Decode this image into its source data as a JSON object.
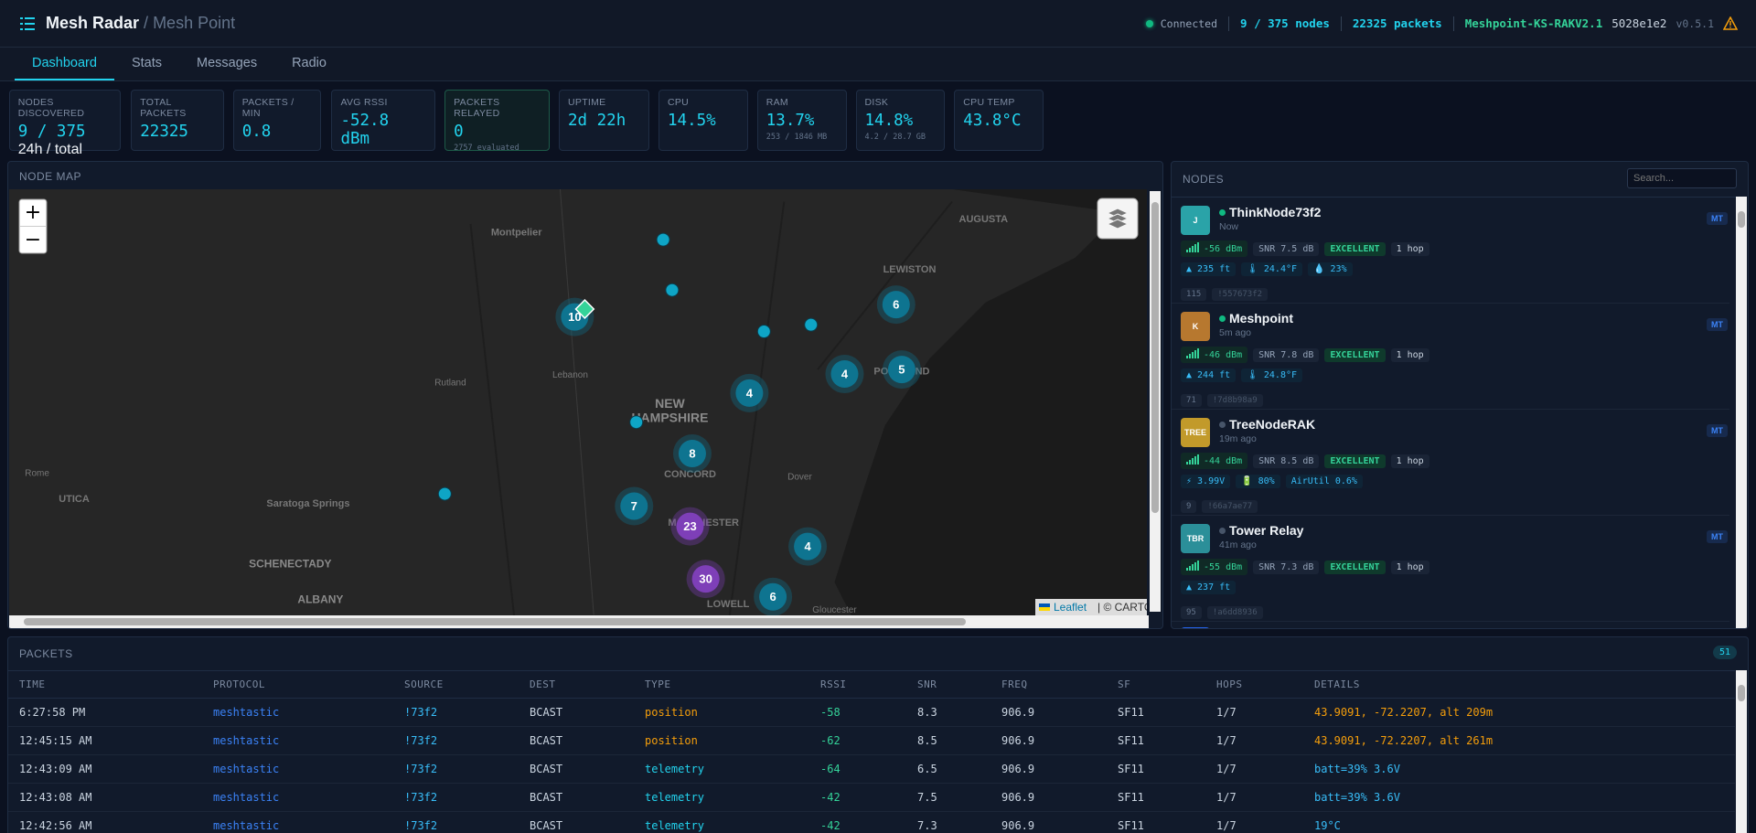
{
  "header": {
    "brand": "Mesh Radar",
    "separator": "/",
    "subtitle": "Mesh Point",
    "status": "Connected",
    "nodes": "9 / 375 nodes",
    "packets": "22325 packets",
    "device": "Meshpoint-KS-RAKV2.1",
    "hash": "5028e1e2",
    "version": "v0.5.1"
  },
  "tabs": [
    "Dashboard",
    "Stats",
    "Messages",
    "Radio"
  ],
  "stats": [
    {
      "label": "NODES DISCOVERED",
      "value": "9 / 375",
      "sub": "24h / total"
    },
    {
      "label": "TOTAL PACKETS",
      "value": "22325"
    },
    {
      "label": "PACKETS / MIN",
      "value": "0.8"
    },
    {
      "label": "AVG RSSI",
      "value": "-52.8 dBm"
    },
    {
      "label": "PACKETS RELAYED",
      "value": "0",
      "sub": "2757 evaluated"
    },
    {
      "label": "UPTIME",
      "value": "2d 22h"
    },
    {
      "label": "CPU",
      "value": "14.5%"
    },
    {
      "label": "RAM",
      "value": "13.7%",
      "sub": "253 / 1846 MB"
    },
    {
      "label": "DISK",
      "value": "14.8%",
      "sub": "4.2 / 28.7 GB"
    },
    {
      "label": "CPU TEMP",
      "value": "43.8°C"
    }
  ],
  "map": {
    "title": "NODE MAP",
    "zoom_in": "+",
    "zoom_out": "−",
    "places": [
      "Montpelier",
      "AUGUSTA",
      "LEWISTON",
      "Rutland",
      "Lebanon",
      "NEW",
      "HAMPSHIRE",
      "PORTLAND",
      "Rome",
      "UTICA",
      "Saratoga Springs",
      "CONCORD",
      "Dover",
      "MANCHESTER",
      "SCHENECTADY",
      "ALBANY",
      "LOWELL",
      "Gloucester"
    ],
    "clusters": [
      "10",
      "6",
      "4",
      "5",
      "4",
      "8",
      "7",
      "23",
      "4",
      "30",
      "6"
    ],
    "attribution": [
      "Leaflet",
      "| © CARTO"
    ]
  },
  "nodes_panel": {
    "title": "NODES",
    "search_placeholder": "Search...",
    "nodes": [
      {
        "avatar": "J",
        "name": "ThinkNode73f2",
        "seen": "Now",
        "rssi": "-56 dBm",
        "snr": "SNR 7.5 dB",
        "quality": "EXCELLENT",
        "hops": "1 hop",
        "extras": [
          "▲ 235 ft",
          "🌡 24.4°F",
          "💧 23%"
        ],
        "num": "115",
        "id": "!557673f2",
        "badge": "MT"
      },
      {
        "avatar": "K",
        "name": "Meshpoint",
        "seen": "5m ago",
        "rssi": "-46 dBm",
        "snr": "SNR 7.8 dB",
        "quality": "EXCELLENT",
        "hops": "1 hop",
        "extras": [
          "▲ 244 ft",
          "🌡 24.8°F"
        ],
        "num": "71",
        "id": "!7d8b98a9",
        "badge": "MT"
      },
      {
        "avatar": "TREE",
        "name": "TreeNodeRAK",
        "seen": "19m ago",
        "rssi": "-44 dBm",
        "snr": "SNR 8.5 dB",
        "quality": "EXCELLENT",
        "hops": "1 hop",
        "extras": [
          "⚡ 3.99V",
          "🔋 80%",
          "AirUtil 0.6%"
        ],
        "num": "9",
        "id": "!66a7ae77",
        "badge": "MT"
      },
      {
        "avatar": "TBR",
        "name": "Tower Relay",
        "seen": "41m ago",
        "rssi": "-55 dBm",
        "snr": "SNR 7.3 dB",
        "quality": "EXCELLENT",
        "hops": "1 hop",
        "extras": [
          "▲ 237 ft"
        ],
        "num": "95",
        "id": "!a6dd8936",
        "badge": "MT"
      }
    ]
  },
  "packets": {
    "title": "PACKETS",
    "count": "51",
    "columns": [
      "TIME",
      "PROTOCOL",
      "SOURCE",
      "DEST",
      "TYPE",
      "RSSI",
      "SNR",
      "FREQ",
      "SF",
      "HOPS",
      "DETAILS"
    ],
    "rows": [
      [
        "6:27:58 PM",
        "meshtastic",
        "!73f2",
        "BCAST",
        "position",
        "-58",
        "8.3",
        "906.9",
        "SF11",
        "1/7",
        "43.9091, -72.2207, alt 209m"
      ],
      [
        "12:45:15 AM",
        "meshtastic",
        "!73f2",
        "BCAST",
        "position",
        "-62",
        "8.5",
        "906.9",
        "SF11",
        "1/7",
        "43.9091, -72.2207, alt 261m"
      ],
      [
        "12:43:09 AM",
        "meshtastic",
        "!73f2",
        "BCAST",
        "telemetry",
        "-64",
        "6.5",
        "906.9",
        "SF11",
        "1/7",
        "batt=39% 3.6V"
      ],
      [
        "12:43:08 AM",
        "meshtastic",
        "!73f2",
        "BCAST",
        "telemetry",
        "-42",
        "7.5",
        "906.9",
        "SF11",
        "1/7",
        "batt=39% 3.6V"
      ],
      [
        "12:42:56 AM",
        "meshtastic",
        "!73f2",
        "BCAST",
        "telemetry",
        "-42",
        "7.3",
        "906.9",
        "SF11",
        "1/7",
        "19°C"
      ]
    ]
  }
}
